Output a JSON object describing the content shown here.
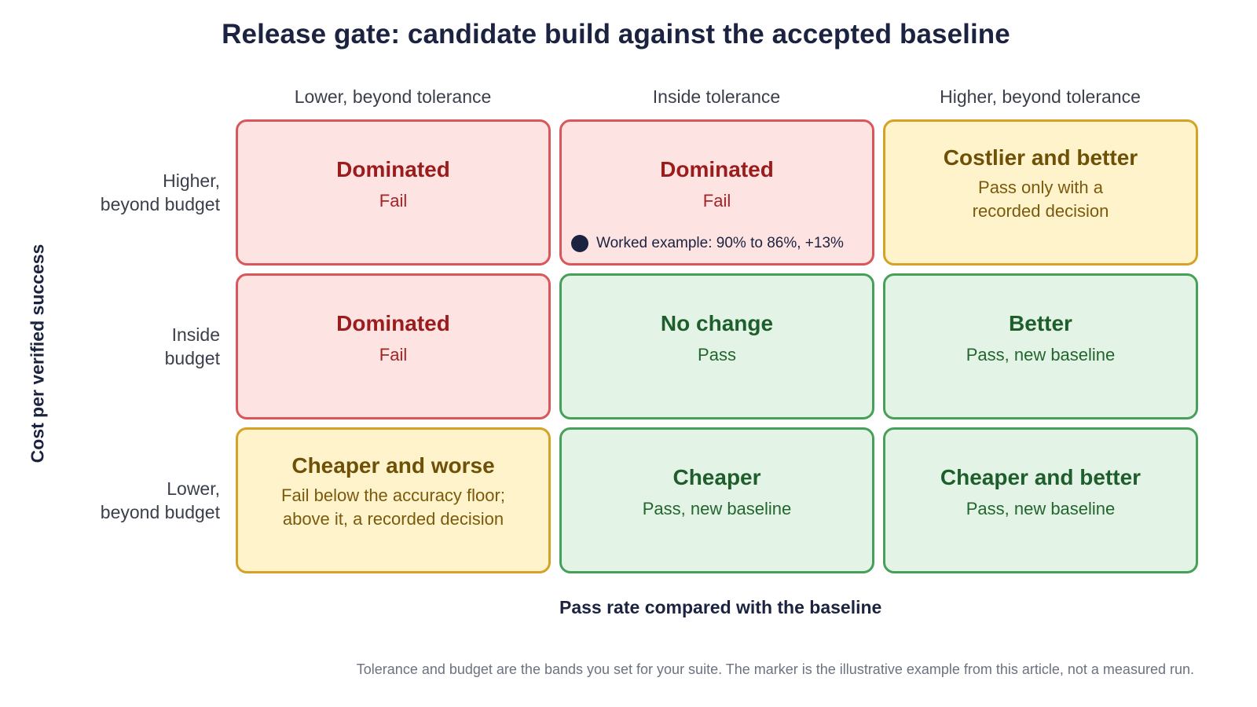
{
  "title": "Release gate: candidate build against the accepted baseline",
  "x_axis": {
    "label": "Pass rate compared with the baseline",
    "columns": [
      "Lower, beyond tolerance",
      "Inside tolerance",
      "Higher, beyond tolerance"
    ]
  },
  "y_axis": {
    "label": "Cost per verified success",
    "rows": [
      [
        "Higher,",
        "beyond budget"
      ],
      [
        "Inside",
        "budget"
      ],
      [
        "Lower,",
        "beyond budget"
      ]
    ]
  },
  "cells": [
    [
      {
        "title": "Dominated",
        "sub": [
          "Fail"
        ],
        "status_color": "#fde3e2"
      },
      {
        "title": "Dominated",
        "sub": [
          "Fail"
        ],
        "status_color": "#fde3e2"
      },
      {
        "title": "Costlier and better",
        "sub": [
          "Pass only with a",
          "recorded decision"
        ],
        "status_color": "#fff3cc"
      }
    ],
    [
      {
        "title": "Dominated",
        "sub": [
          "Fail"
        ],
        "status_color": "#fde3e2"
      },
      {
        "title": "No change",
        "sub": [
          "Pass"
        ],
        "status_color": "#e3f4e6"
      },
      {
        "title": "Better",
        "sub": [
          "Pass, new baseline"
        ],
        "status_color": "#e3f4e6"
      }
    ],
    [
      {
        "title": "Cheaper and worse",
        "sub": [
          "Fail below the accuracy floor;",
          "above it, a recorded decision"
        ],
        "status_color": "#fff3cc"
      },
      {
        "title": "Cheaper",
        "sub": [
          "Pass, new baseline"
        ],
        "status_color": "#e3f4e6"
      },
      {
        "title": "Cheaper and better",
        "sub": [
          "Pass, new baseline"
        ],
        "status_color": "#e3f4e6"
      }
    ]
  ],
  "marker": {
    "label": "Worked example: 90% to 86%, +13%",
    "icon": "filled-circle-icon",
    "color": "#1b2340"
  },
  "footnote": "Tolerance and budget are the bands you set for your suite. The marker is the illustrative example from this article, not a measured run."
}
